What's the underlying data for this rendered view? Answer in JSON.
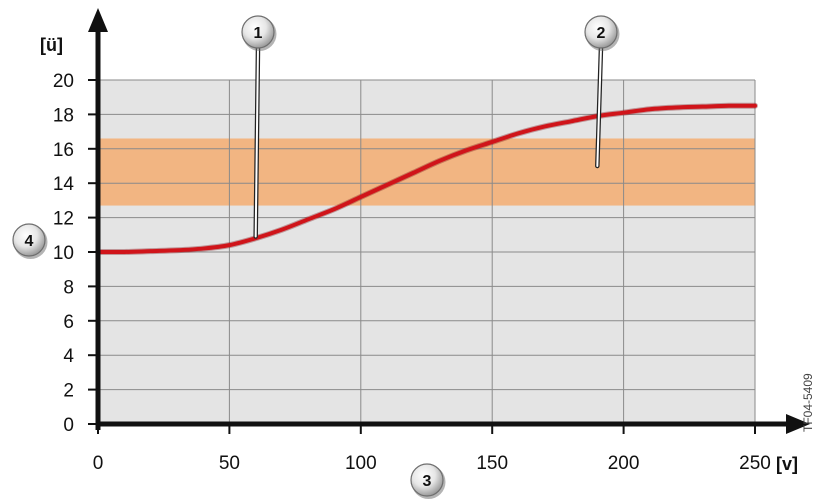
{
  "chart_data": {
    "type": "line",
    "x_unit_label": "[v]",
    "y_unit_label": "[ü]",
    "xlim": [
      0,
      250
    ],
    "ylim": [
      0,
      20
    ],
    "x_ticks": [
      0,
      50,
      100,
      150,
      200,
      250
    ],
    "y_ticks": [
      0,
      2,
      4,
      6,
      8,
      10,
      12,
      14,
      16,
      18,
      20
    ],
    "grid": true,
    "plot_background": "#e4e4e4",
    "band": {
      "y_from": 12.7,
      "y_to": 16.6,
      "color": "#f2b582"
    },
    "series": [
      {
        "color": "#d0141a",
        "x": [
          0,
          10,
          20,
          30,
          40,
          50,
          60,
          70,
          80,
          90,
          100,
          110,
          120,
          130,
          140,
          150,
          160,
          170,
          180,
          190,
          200,
          210,
          220,
          230,
          240,
          250
        ],
        "y": [
          10.0,
          10.0,
          10.05,
          10.1,
          10.2,
          10.4,
          10.8,
          11.3,
          11.9,
          12.5,
          13.2,
          13.9,
          14.6,
          15.3,
          15.9,
          16.4,
          16.9,
          17.3,
          17.6,
          17.9,
          18.1,
          18.3,
          18.4,
          18.45,
          18.5,
          18.5
        ]
      }
    ],
    "callouts": [
      {
        "label": "1",
        "target_x": 60,
        "target_y": 10.9
      },
      {
        "label": "2",
        "target_x": 190,
        "target_y": 15.0
      },
      {
        "label": "3"
      },
      {
        "label": "4"
      }
    ],
    "figure_code": "TF04-5409"
  }
}
